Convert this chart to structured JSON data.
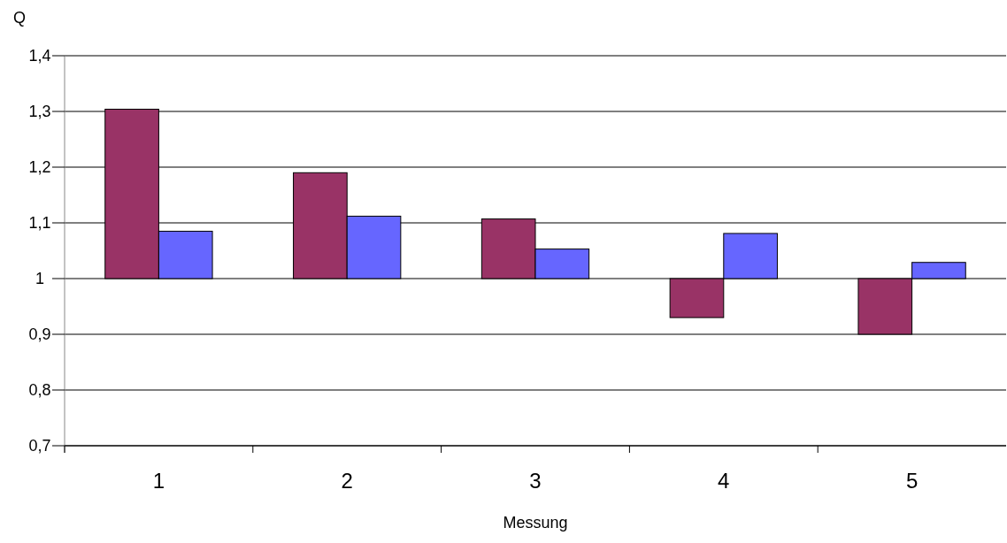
{
  "chart_data": {
    "type": "bar",
    "xlabel": "Messung",
    "ylabel": "Q",
    "categories": [
      "1",
      "2",
      "3",
      "4",
      "5"
    ],
    "series": [
      {
        "color": "#993366",
        "base": [
          1,
          1,
          1,
          1,
          1
        ],
        "values": [
          0.304,
          0.19,
          0.107,
          -0.07,
          -0.1
        ]
      },
      {
        "color": "#6666ff",
        "base": [
          1,
          1,
          1,
          1,
          1
        ],
        "values": [
          0.085,
          0.112,
          0.053,
          0.081,
          0.029
        ]
      }
    ],
    "ylim": [
      0.7,
      1.4
    ],
    "yticks": [
      {
        "value": 0.7,
        "label": "0,7"
      },
      {
        "value": 0.8,
        "label": "0,8"
      },
      {
        "value": 0.9,
        "label": "0,9"
      },
      {
        "value": 1,
        "label": "1"
      },
      {
        "value": 1.1,
        "label": "1,1"
      },
      {
        "value": 1.2,
        "label": "1,2"
      },
      {
        "value": 1.3,
        "label": "1,3"
      },
      {
        "value": 1.4,
        "label": "1,4"
      }
    ],
    "grid": "y"
  }
}
